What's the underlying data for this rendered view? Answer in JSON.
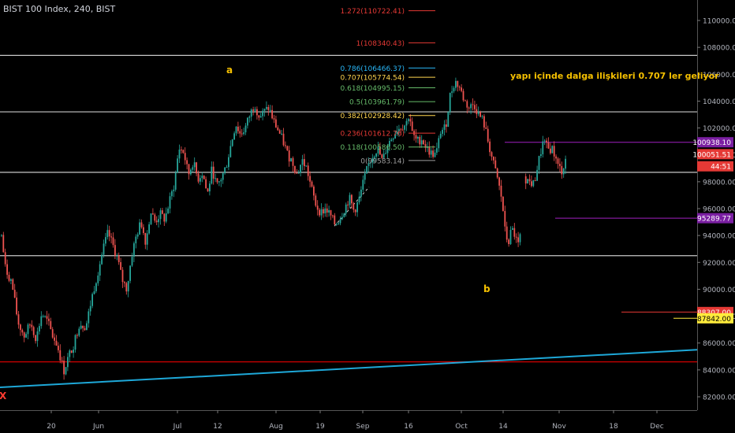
{
  "header": {
    "title": "BIST 100 Index, 240, BIST"
  },
  "colors": {
    "background": "#000000",
    "up": "#26a69a",
    "down": "#ef5350",
    "wick": "#cfcfcf",
    "grid_level": "#c8c8c8",
    "trend": "#1ea8d8",
    "red_line": "#d00000",
    "purple_line": "#a020c0",
    "annotation_text": "#f5c000",
    "axis_text": "#b2b5be"
  },
  "annotations": {
    "wave_a": "a",
    "wave_b": "b",
    "wave_x": "X",
    "comment": "yapı içinde dalga ilişkileri 0.707 ler geliyor"
  },
  "fib_levels": [
    {
      "label": "1.272(110722.41)",
      "value": 110722.41,
      "color": "#e53935"
    },
    {
      "label": "1(108340.43)",
      "value": 108340.43,
      "color": "#e53935"
    },
    {
      "label": "0.786(106466.37)",
      "value": 106466.37,
      "color": "#29b6f6"
    },
    {
      "label": "0.707(105774.54)",
      "value": 105774.54,
      "color": "#ffd54f"
    },
    {
      "label": "0.618(104995.15)",
      "value": 104995.15,
      "color": "#66bb6a"
    },
    {
      "label": "0.5(103961.79)",
      "value": 103961.79,
      "color": "#66bb6a"
    },
    {
      "label": "0.382(102928.42)",
      "value": 102928.42,
      "color": "#ffd54f"
    },
    {
      "label": "0.236(101612.76)",
      "value": 101612.76,
      "color": "#e53935"
    },
    {
      "label": "0.118(100586.50)",
      "value": 100586.5,
      "color": "#66bb6a"
    },
    {
      "label": "0(99583.14)",
      "value": 99583.14,
      "color": "#9e9e9e"
    }
  ],
  "price_tags": [
    {
      "label": "100938.10",
      "value": 100938.1,
      "bg": "#7b1fa2",
      "fg": "#ffffff"
    },
    {
      "label": "100051.51",
      "value": 100051.51,
      "bg": "#e53935",
      "fg": "#ffffff"
    },
    {
      "label": "44:51",
      "value": 99150,
      "bg": "#e53935",
      "fg": "#ffffff"
    },
    {
      "label": "95289.77",
      "value": 95289.77,
      "bg": "#7b1fa2",
      "fg": "#ffffff"
    },
    {
      "label": "88307.00",
      "value": 88307.0,
      "bg": "#e53935",
      "fg": "#ffffff"
    },
    {
      "label": "87842.00",
      "value": 87842.0,
      "bg": "#ffeb3b",
      "fg": "#000000"
    }
  ],
  "chart_data": {
    "type": "candlestick",
    "symbol": "BIST 100 Index",
    "interval": "240",
    "exchange": "BIST",
    "ylim": [
      81000,
      112000
    ],
    "y_ticks": [
      "82000.00",
      "84000.00",
      "86000.00",
      "88000.00",
      "90000.00",
      "92000.00",
      "94000.00",
      "96000.00",
      "98000.00",
      "100000.00",
      "102000.00",
      "104000.00",
      "106000.00",
      "108000.00",
      "110000.00"
    ],
    "x_ticks": [
      "20",
      "Jun",
      "Jul",
      "12",
      "Aug",
      "19",
      "Sep",
      "16",
      "Oct",
      "14",
      "Nov",
      "18",
      "Dec"
    ],
    "horizontal_levels": [
      107400,
      103200,
      98700,
      92500
    ],
    "red_horizontal": 84600,
    "purple_levels": [
      100938.1,
      95289.77
    ],
    "red_short_levels": [
      88307.0,
      87842.0
    ],
    "trendline": {
      "start": 82700,
      "end": 85500
    },
    "path": [
      [
        0,
        94500
      ],
      [
        6,
        91500
      ],
      [
        14,
        90500
      ],
      [
        22,
        87500
      ],
      [
        30,
        86500
      ],
      [
        38,
        87500
      ],
      [
        45,
        86300
      ],
      [
        52,
        88200
      ],
      [
        60,
        87500
      ],
      [
        66,
        86500
      ],
      [
        72,
        85800
      ],
      [
        80,
        83900
      ],
      [
        86,
        85000
      ],
      [
        92,
        85800
      ],
      [
        100,
        87500
      ],
      [
        108,
        87200
      ],
      [
        116,
        89500
      ],
      [
        124,
        91500
      ],
      [
        130,
        93000
      ],
      [
        136,
        94200
      ],
      [
        142,
        93300
      ],
      [
        148,
        92300
      ],
      [
        154,
        90700
      ],
      [
        160,
        90000
      ],
      [
        166,
        92500
      ],
      [
        172,
        94000
      ],
      [
        178,
        95000
      ],
      [
        184,
        93500
      ],
      [
        190,
        95800
      ],
      [
        196,
        95000
      ],
      [
        202,
        95600
      ],
      [
        208,
        95200
      ],
      [
        214,
        96500
      ],
      [
        220,
        97800
      ],
      [
        226,
        100500
      ],
      [
        232,
        100200
      ],
      [
        238,
        98500
      ],
      [
        244,
        99500
      ],
      [
        250,
        98200
      ],
      [
        256,
        98700
      ],
      [
        262,
        97000
      ],
      [
        268,
        99000
      ],
      [
        274,
        97600
      ],
      [
        280,
        98300
      ],
      [
        286,
        99200
      ],
      [
        292,
        100800
      ],
      [
        298,
        102300
      ],
      [
        304,
        101500
      ],
      [
        310,
        102000
      ],
      [
        316,
        103000
      ],
      [
        322,
        103800
      ],
      [
        328,
        102800
      ],
      [
        334,
        103200
      ],
      [
        340,
        103500
      ],
      [
        346,
        102500
      ],
      [
        352,
        101800
      ],
      [
        358,
        101000
      ],
      [
        364,
        100000
      ],
      [
        370,
        99500
      ],
      [
        376,
        98500
      ],
      [
        382,
        99600
      ],
      [
        388,
        99000
      ],
      [
        394,
        97500
      ],
      [
        400,
        96200
      ],
      [
        406,
        95700
      ],
      [
        412,
        96000
      ],
      [
        418,
        95500
      ],
      [
        424,
        94800
      ],
      [
        430,
        95300
      ],
      [
        436,
        96000
      ],
      [
        442,
        96800
      ],
      [
        448,
        95800
      ],
      [
        454,
        96600
      ],
      [
        460,
        98000
      ],
      [
        466,
        99200
      ],
      [
        472,
        100000
      ],
      [
        478,
        100500
      ],
      [
        484,
        99500
      ],
      [
        490,
        100700
      ],
      [
        496,
        101300
      ],
      [
        502,
        101900
      ],
      [
        508,
        102100
      ],
      [
        514,
        102300
      ],
      [
        518,
        103100
      ],
      [
        522,
        101500
      ],
      [
        528,
        101000
      ],
      [
        534,
        101200
      ],
      [
        540,
        100500
      ],
      [
        546,
        100100
      ],
      [
        552,
        100000
      ],
      [
        558,
        101800
      ],
      [
        564,
        102000
      ],
      [
        570,
        104500
      ],
      [
        576,
        105500
      ],
      [
        582,
        105000
      ],
      [
        588,
        104000
      ],
      [
        594,
        103500
      ],
      [
        600,
        103800
      ],
      [
        606,
        103000
      ],
      [
        612,
        102500
      ],
      [
        618,
        101000
      ],
      [
        624,
        99500
      ],
      [
        630,
        98200
      ],
      [
        636,
        96500
      ],
      [
        640,
        94000
      ],
      [
        644,
        93500
      ],
      [
        648,
        94500
      ],
      [
        652,
        94000
      ],
      [
        656,
        93200
      ],
      [
        660,
        94300
      ],
      [
        664,
        98300
      ],
      [
        670,
        98000
      ],
      [
        676,
        97800
      ],
      [
        682,
        99500
      ],
      [
        688,
        101000
      ],
      [
        694,
        100400
      ],
      [
        700,
        100500
      ],
      [
        706,
        99200
      ],
      [
        712,
        98800
      ],
      [
        718,
        100051.51
      ]
    ]
  }
}
